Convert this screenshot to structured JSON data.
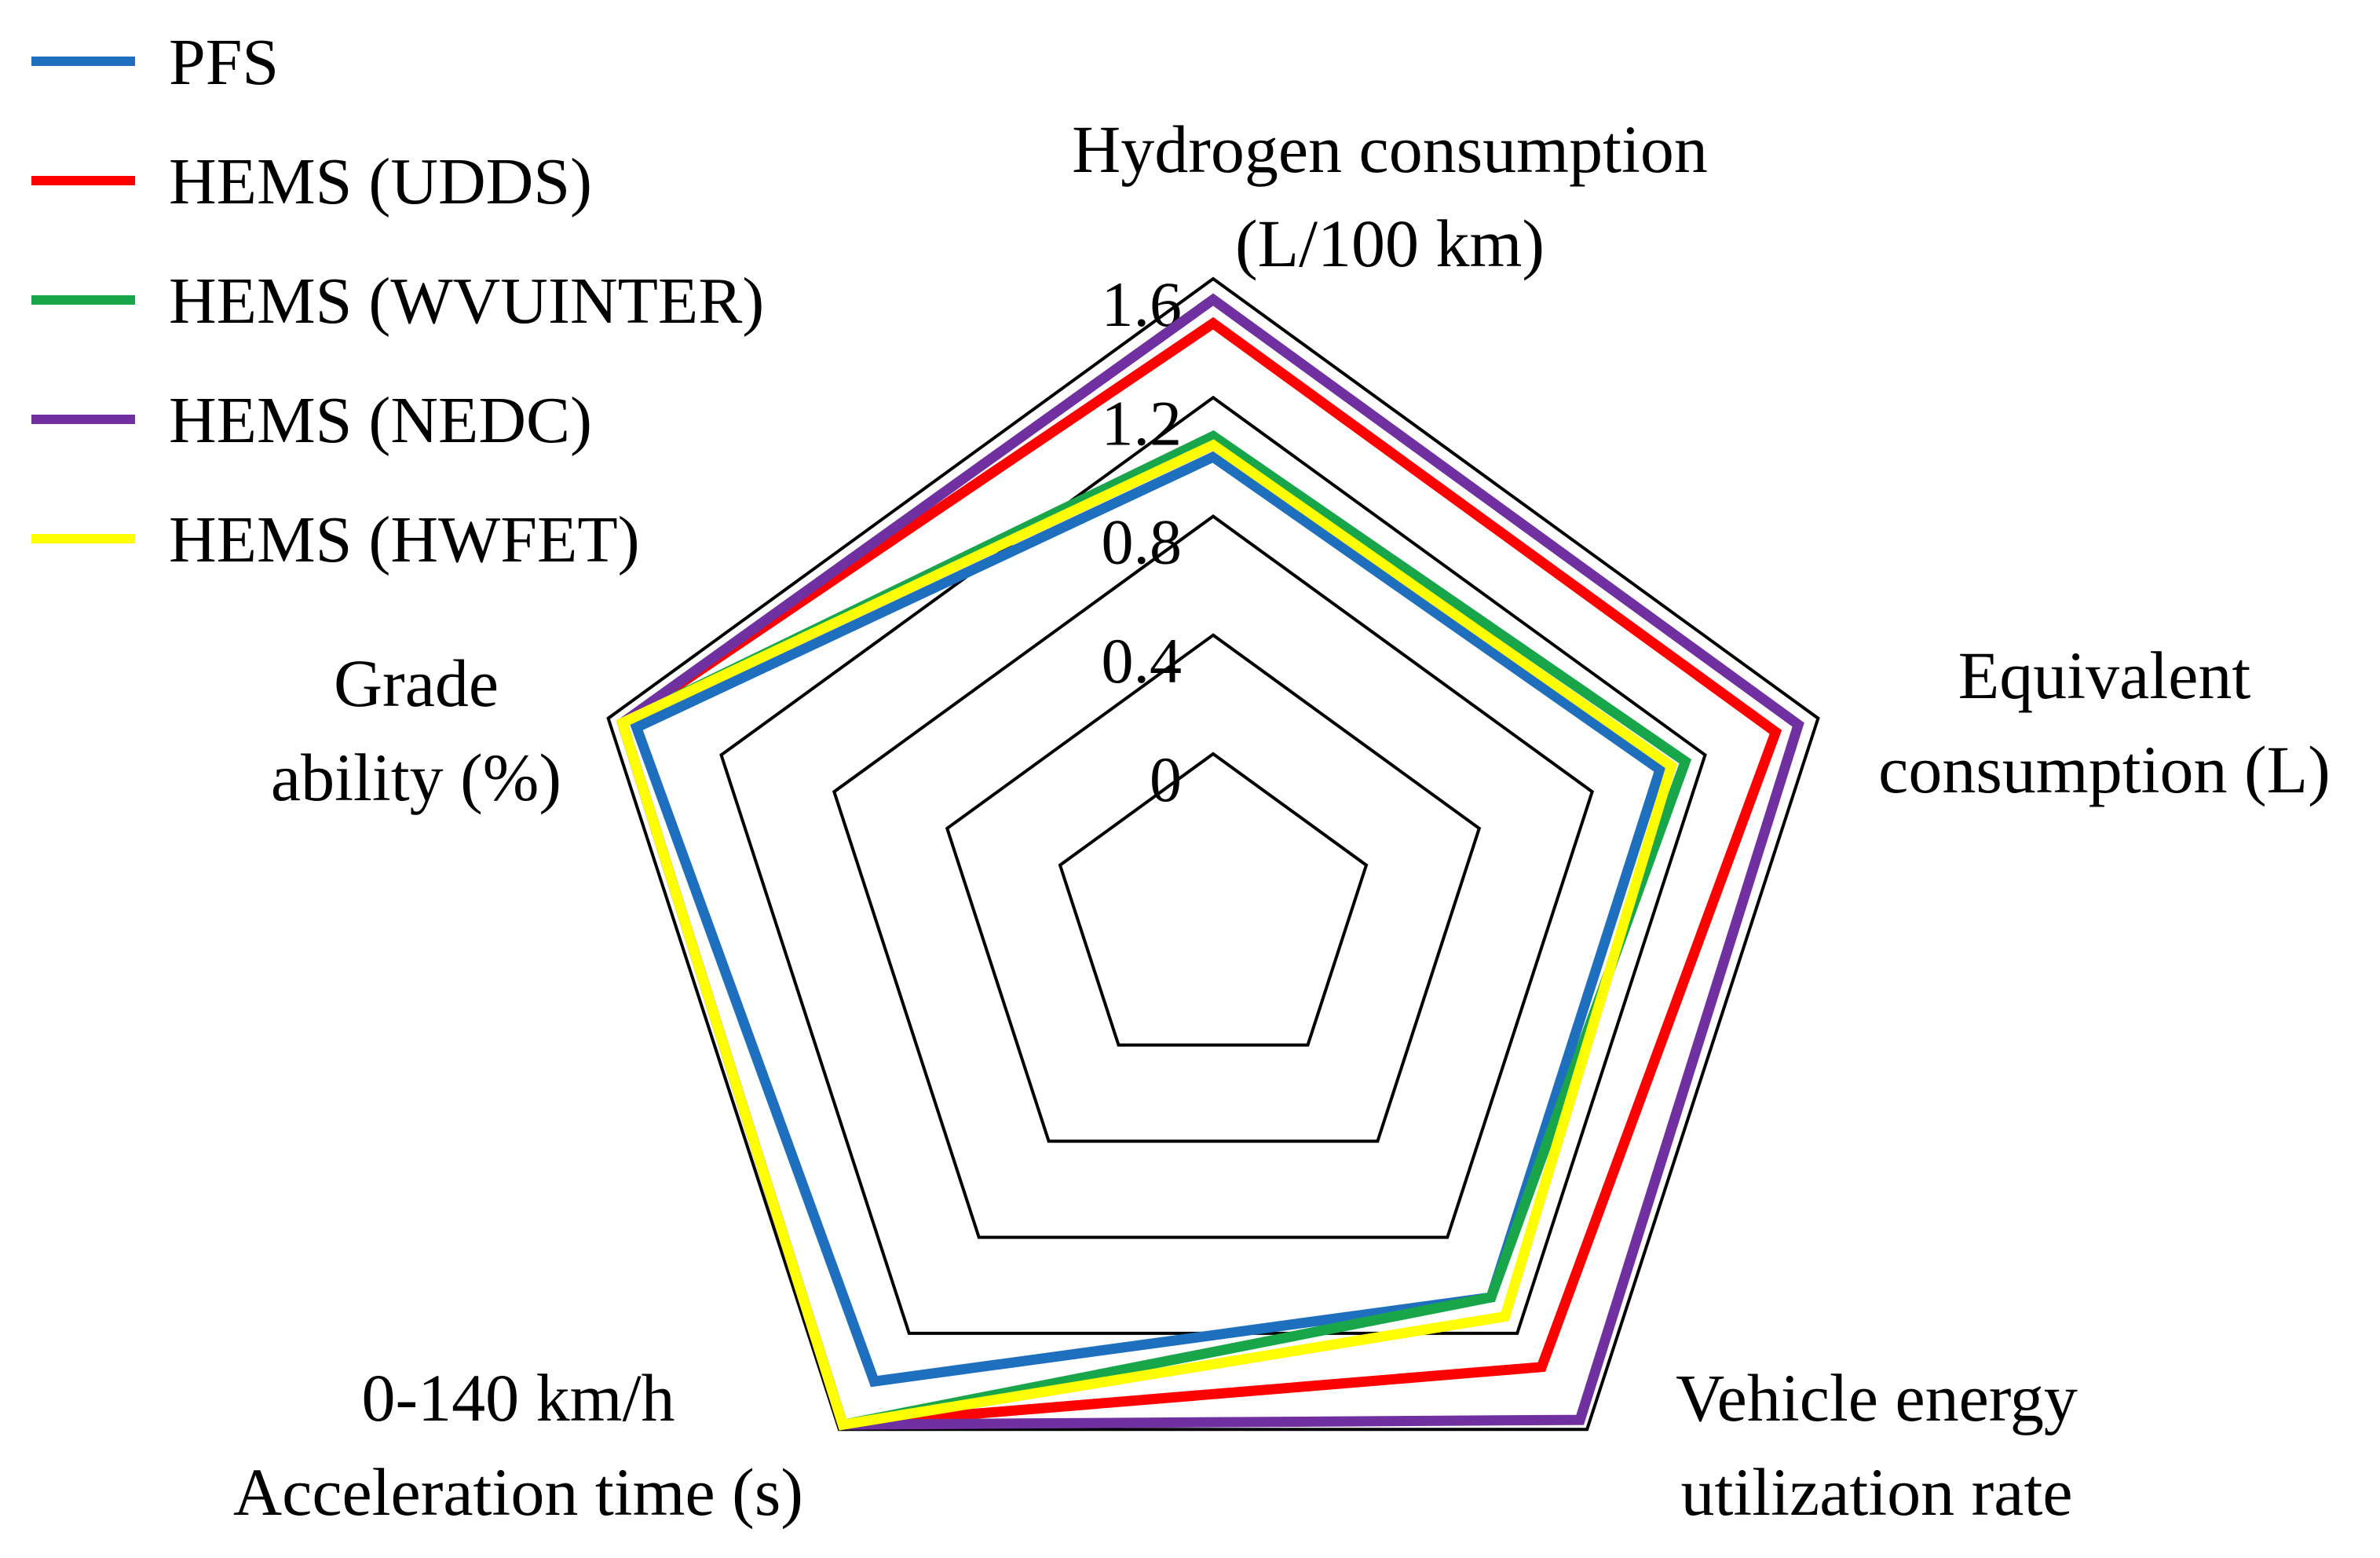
{
  "chart_data": {
    "type": "radar",
    "axes": [
      {
        "line1": "Hydrogen  consumption",
        "line2": "(L/100 km)"
      },
      {
        "line1": "Equivalent",
        "line2": "consumption (L)"
      },
      {
        "line1": "Vehicle energy",
        "line2": "utilization rate"
      },
      {
        "line1": "0-140 km/h",
        "line2": "Acceleration time (s)"
      },
      {
        "line1": "Grade",
        "line2": "ability (%)"
      }
    ],
    "ticks": [
      "0",
      "0.4",
      "0.8",
      "1.2",
      "1.6"
    ],
    "rmin": 0,
    "rmax": 1.6,
    "series": [
      {
        "name": "PFS",
        "color": "#1f6fbf",
        "values": [
          1.0,
          1.04,
          1.05,
          1.4,
          1.5
        ]
      },
      {
        "name": "HEMS (UDDS)",
        "color": "#ff0000",
        "values": [
          1.45,
          1.45,
          1.34,
          1.58,
          1.55
        ]
      },
      {
        "name": "HEMS (WVUINTER)",
        "color": "#19a64a",
        "values": [
          1.07,
          1.13,
          1.05,
          1.58,
          1.55
        ]
      },
      {
        "name": "HEMS (NEDC)",
        "color": "#7030a0",
        "values": [
          1.53,
          1.53,
          1.56,
          1.58,
          1.55
        ]
      },
      {
        "name": "HEMS (HWFET)",
        "color": "#ffff00",
        "values": [
          1.04,
          1.08,
          1.13,
          1.58,
          1.55
        ]
      }
    ]
  }
}
